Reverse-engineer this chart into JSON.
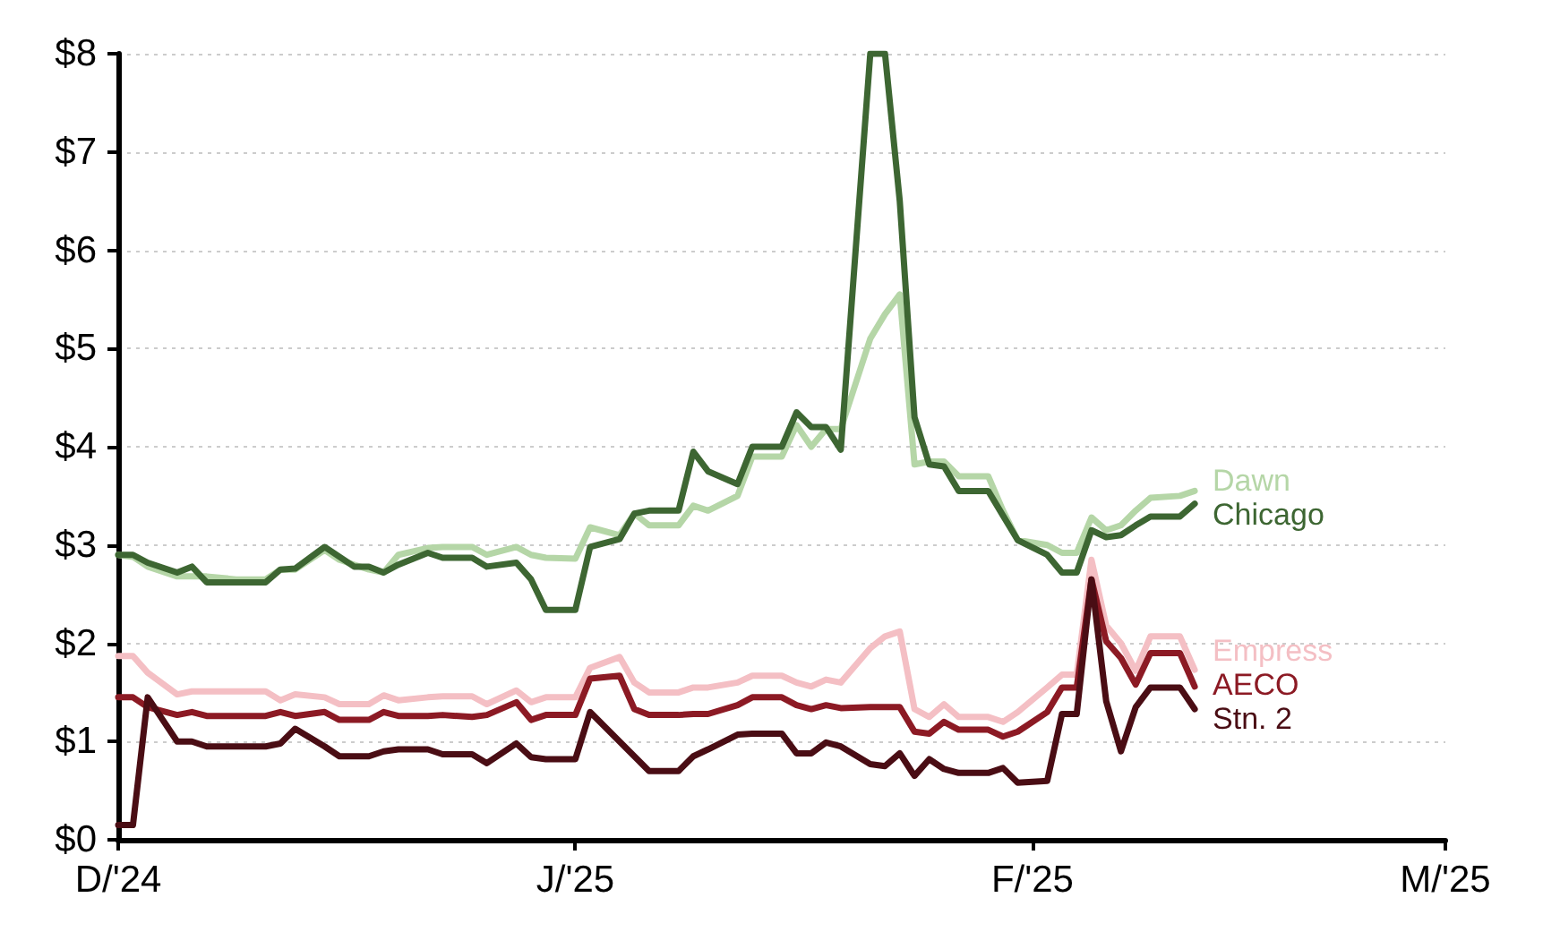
{
  "chart_data": {
    "type": "line",
    "x": [
      "2024-12-01",
      "2024-12-02",
      "2024-12-03",
      "2024-12-05",
      "2024-12-06",
      "2024-12-07",
      "2024-12-09",
      "2024-12-11",
      "2024-12-12",
      "2024-12-13",
      "2024-12-15",
      "2024-12-16",
      "2024-12-17",
      "2024-12-18",
      "2024-12-19",
      "2024-12-20",
      "2024-12-22",
      "2024-12-23",
      "2024-12-25",
      "2024-12-26",
      "2024-12-28",
      "2024-12-29",
      "2024-12-30",
      "2025-01-01",
      "2025-01-02",
      "2025-01-04",
      "2025-01-05",
      "2025-01-06",
      "2025-01-08",
      "2025-01-09",
      "2025-01-10",
      "2025-01-12",
      "2025-01-13",
      "2025-01-15",
      "2025-01-16",
      "2025-01-17",
      "2025-01-18",
      "2025-01-19",
      "2025-01-21",
      "2025-01-22",
      "2025-01-23",
      "2025-01-24",
      "2025-01-25",
      "2025-01-26",
      "2025-01-27",
      "2025-01-29",
      "2025-01-30",
      "2025-01-31",
      "2025-02-02",
      "2025-02-03",
      "2025-02-04",
      "2025-02-05",
      "2025-02-06",
      "2025-02-07",
      "2025-02-08",
      "2025-02-09",
      "2025-02-11",
      "2025-02-12"
    ],
    "series": [
      {
        "name": "Dawn",
        "color": "#b5d6a7",
        "values": [
          2.9,
          2.88,
          2.78,
          2.68,
          2.68,
          2.68,
          2.65,
          2.65,
          2.75,
          2.75,
          2.95,
          2.85,
          2.8,
          2.75,
          2.72,
          2.9,
          2.97,
          2.98,
          2.98,
          2.9,
          2.98,
          2.9,
          2.87,
          2.86,
          3.18,
          3.1,
          3.32,
          3.2,
          3.2,
          3.4,
          3.35,
          3.5,
          3.9,
          3.9,
          4.22,
          4.0,
          4.18,
          4.18,
          5.1,
          5.35,
          5.55,
          3.82,
          3.85,
          3.85,
          3.7,
          3.7,
          3.35,
          3.05,
          3.0,
          2.92,
          2.92,
          3.28,
          3.15,
          3.2,
          3.35,
          3.48,
          3.5,
          3.55
        ]
      },
      {
        "name": "Chicago",
        "color": "#3d6632",
        "values": [
          2.9,
          2.9,
          2.82,
          2.72,
          2.78,
          2.62,
          2.62,
          2.62,
          2.75,
          2.76,
          2.98,
          2.88,
          2.78,
          2.78,
          2.72,
          2.8,
          2.92,
          2.87,
          2.87,
          2.78,
          2.82,
          2.65,
          2.34,
          2.34,
          2.98,
          3.06,
          3.32,
          3.35,
          3.35,
          3.95,
          3.75,
          3.62,
          4.0,
          4.0,
          4.35,
          4.2,
          4.2,
          3.97,
          8,
          8,
          6.5,
          4.3,
          3.82,
          3.8,
          3.55,
          3.55,
          3.3,
          3.05,
          2.9,
          2.72,
          2.72,
          3.15,
          3.08,
          3.1,
          3.2,
          3.29,
          3.29,
          3.42
        ]
      },
      {
        "name": "Empress",
        "color": "#f4bfc4",
        "values": [
          1.87,
          1.87,
          1.7,
          1.48,
          1.51,
          1.51,
          1.51,
          1.51,
          1.42,
          1.48,
          1.45,
          1.38,
          1.38,
          1.38,
          1.47,
          1.42,
          1.45,
          1.46,
          1.46,
          1.38,
          1.52,
          1.4,
          1.45,
          1.45,
          1.75,
          1.86,
          1.6,
          1.5,
          1.5,
          1.55,
          1.55,
          1.6,
          1.67,
          1.67,
          1.6,
          1.56,
          1.63,
          1.6,
          1.95,
          2.07,
          2.12,
          1.33,
          1.25,
          1.38,
          1.25,
          1.25,
          1.2,
          1.3,
          1.55,
          1.68,
          1.68,
          2.85,
          2.18,
          2.0,
          1.72,
          2.07,
          2.07,
          1.73
        ]
      },
      {
        "name": "AECO",
        "color": "#8c1a24",
        "values": [
          1.45,
          1.45,
          1.35,
          1.27,
          1.3,
          1.26,
          1.26,
          1.26,
          1.3,
          1.26,
          1.3,
          1.22,
          1.22,
          1.22,
          1.3,
          1.26,
          1.26,
          1.27,
          1.25,
          1.27,
          1.4,
          1.22,
          1.27,
          1.27,
          1.64,
          1.67,
          1.33,
          1.27,
          1.27,
          1.28,
          1.28,
          1.37,
          1.45,
          1.45,
          1.37,
          1.33,
          1.37,
          1.34,
          1.35,
          1.35,
          1.35,
          1.1,
          1.08,
          1.2,
          1.12,
          1.12,
          1.05,
          1.1,
          1.3,
          1.55,
          1.55,
          2.65,
          2.02,
          1.85,
          1.58,
          1.9,
          1.9,
          1.56
        ]
      },
      {
        "name": "Stn. 2",
        "color": "#4a0d14",
        "values": [
          0.15,
          0.15,
          1.45,
          1.0,
          1.0,
          0.95,
          0.95,
          0.95,
          0.98,
          1.13,
          0.95,
          0.85,
          0.85,
          0.85,
          0.9,
          0.92,
          0.92,
          0.87,
          0.87,
          0.78,
          0.98,
          0.84,
          0.82,
          0.82,
          1.3,
          1.0,
          0.85,
          0.7,
          0.7,
          0.85,
          0.92,
          1.07,
          1.08,
          1.08,
          0.88,
          0.88,
          0.99,
          0.95,
          0.77,
          0.75,
          0.88,
          0.65,
          0.82,
          0.72,
          0.68,
          0.68,
          0.73,
          0.58,
          0.6,
          1.28,
          1.28,
          2.65,
          1.41,
          0.9,
          1.35,
          1.55,
          1.55,
          1.33
        ]
      }
    ],
    "xlim": [
      "2024-12-01",
      "2025-03-01"
    ],
    "xticks": [
      {
        "value": "2024-12-01",
        "label": "D/'24"
      },
      {
        "value": "2025-01-01",
        "label": "J/'25"
      },
      {
        "value": "2025-02-01",
        "label": "F/'25"
      },
      {
        "value": "2025-03-01",
        "label": "M/'25"
      }
    ],
    "ylim": [
      0,
      8
    ],
    "yticks": [
      {
        "value": 0,
        "label": "$0"
      },
      {
        "value": 1,
        "label": "$1"
      },
      {
        "value": 2,
        "label": "$2"
      },
      {
        "value": 3,
        "label": "$3"
      },
      {
        "value": 4,
        "label": "$4"
      },
      {
        "value": 5,
        "label": "$5"
      },
      {
        "value": 6,
        "label": "$6"
      },
      {
        "value": 7,
        "label": "$7"
      },
      {
        "value": 8,
        "label": "$8"
      }
    ],
    "grid": "y",
    "marker": "none",
    "line_style": "solid"
  }
}
